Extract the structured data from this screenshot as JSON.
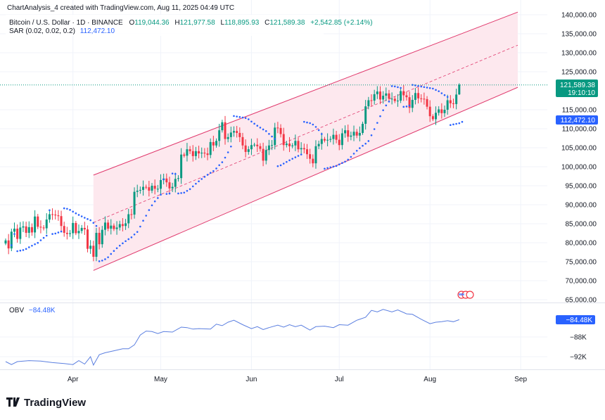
{
  "header": {
    "credit": "ChartAnalysis_4 created with TradingView.com, Aug 11, 2025 04:49 UTC",
    "symbol": "Bitcoin / U.S. Dollar · 1D · BINANCE",
    "o_label": "O",
    "o": "119,044.36",
    "h_label": "H",
    "h": "121,977.58",
    "l_label": "L",
    "l": "118,895.93",
    "c_label": "C",
    "c": "121,589.38",
    "change": "+2,542.85 (+2.14%)",
    "sar_label": "SAR (0.02, 0.02, 0.2)",
    "sar_value": "112,472.10"
  },
  "price_labels": {
    "last": "121,589.38",
    "countdown": "19:10:10",
    "sar": "112,472.10",
    "obv": "−84.48K"
  },
  "obv_legend": {
    "label": "OBV",
    "value": "−84.48K"
  },
  "logo": "TradingView",
  "colors": {
    "up": "#089981",
    "down": "#f23645",
    "sar": "#2962ff",
    "channel": "#e0386c",
    "channel_fill": "#fde8ee",
    "obv": "#5b7fe0"
  },
  "chart_data": [
    {
      "type": "candlestick",
      "title": "Bitcoin / U.S. Dollar · 1D · BINANCE",
      "start_date": "2025-03-09",
      "unit": "thousand USD",
      "close": [
        80.6,
        78.5,
        82.9,
        83.7,
        81.0,
        84.0,
        84.3,
        82.6,
        84.1,
        82.7,
        86.9,
        84.2,
        84.0,
        83.8,
        86.1,
        87.5,
        87.4,
        87.2,
        87.0,
        84.4,
        82.6,
        82.3,
        82.5,
        85.2,
        82.5,
        83.1,
        83.9,
        83.5,
        78.4,
        79.2,
        76.3,
        82.6,
        79.6,
        83.4,
        85.3,
        83.7,
        84.5,
        83.6,
        84.0,
        84.9,
        84.4,
        85.1,
        87.5,
        87.4,
        93.4,
        93.7,
        93.9,
        94.7,
        94.6,
        93.7,
        95.0,
        94.2,
        94.2,
        96.5,
        96.9,
        95.9,
        94.3,
        94.7,
        96.8,
        97.0,
        103.2,
        102.9,
        104.6,
        104.1,
        102.8,
        104.1,
        103.5,
        103.7,
        103.5,
        103.1,
        106.5,
        105.6,
        106.8,
        109.6,
        111.7,
        107.3,
        107.8,
        109.0,
        109.4,
        108.9,
        107.8,
        105.6,
        103.9,
        104.6,
        105.7,
        105.8,
        105.4,
        104.7,
        101.6,
        104.4,
        105.6,
        105.7,
        110.3,
        110.2,
        108.6,
        105.7,
        106.1,
        105.4,
        105.6,
        106.8,
        104.6,
        104.9,
        104.6,
        103.3,
        102.1,
        100.9,
        105.4,
        106.0,
        107.3,
        106.9,
        107.1,
        107.3,
        108.4,
        107.1,
        105.7,
        108.8,
        109.6,
        107.9,
        108.2,
        109.2,
        108.2,
        108.9,
        111.3,
        115.9,
        117.5,
        117.4,
        119.1,
        119.8,
        117.7,
        118.7,
        119.3,
        117.9,
        117.9,
        117.3,
        117.4,
        119.9,
        118.8,
        118.3,
        115.5,
        117.6,
        119.4,
        118.0,
        117.9,
        117.8,
        115.8,
        113.3,
        112.5,
        114.2,
        115.1,
        114.1,
        115.0,
        117.5,
        116.7,
        116.5,
        119.0,
        121.589
      ],
      "last_ohlc": {
        "open": 119044.36,
        "high": 121977.58,
        "low": 118895.93,
        "close": 121589.38
      },
      "sar_params": [
        0.02,
        0.02,
        0.2
      ],
      "sar_last": 112472.1,
      "channel": {
        "upper": [
          [
            "2025-04-08",
            97.8
          ],
          [
            "2025-08-31",
            140.7
          ]
        ],
        "lower": [
          [
            "2025-04-08",
            72.7
          ],
          [
            "2025-08-31",
            120.9
          ]
        ],
        "middle": [
          [
            "2025-04-08",
            85.3
          ],
          [
            "2025-08-31",
            132.0
          ]
        ]
      },
      "ylim": [
        65000,
        140000
      ],
      "y_ticks": [
        "140,000.00",
        "135,000.00",
        "130,000.00",
        "125,000.00",
        "115,000.00",
        "110,000.00",
        "105,000.00",
        "100,000.00",
        "95,000.00",
        "90,000.00",
        "85,000.00",
        "80,000.00",
        "75,000.00",
        "70,000.00",
        "65,000.00"
      ],
      "y_tick_values": [
        140000,
        135000,
        130000,
        125000,
        115000,
        110000,
        105000,
        100000,
        95000,
        90000,
        85000,
        80000,
        75000,
        70000,
        65000
      ],
      "x_ticks": [
        [
          "Apr",
          "2025-04-01"
        ],
        [
          "May",
          "2025-05-01"
        ],
        [
          "Jun",
          "2025-06-01"
        ],
        [
          "Jul",
          "2025-07-01"
        ],
        [
          "Aug",
          "2025-08-01"
        ],
        [
          "Sep",
          "2025-09-01"
        ]
      ],
      "grid": true
    },
    {
      "type": "line",
      "title": "OBV",
      "unit": "K",
      "points": [
        [
          0,
          -93.0
        ],
        [
          2,
          -93.6
        ],
        [
          4,
          -93.0
        ],
        [
          8,
          -92.8
        ],
        [
          12,
          -92.9
        ],
        [
          16,
          -93.2
        ],
        [
          20,
          -93.4
        ],
        [
          23,
          -93.6
        ],
        [
          25,
          -92.8
        ],
        [
          27,
          -93.5
        ],
        [
          29,
          -92.0
        ],
        [
          30,
          -93.7
        ],
        [
          32,
          -91.6
        ],
        [
          34,
          -91.2
        ],
        [
          37,
          -90.8
        ],
        [
          40,
          -90.4
        ],
        [
          42,
          -90.4
        ],
        [
          44,
          -89.6
        ],
        [
          46,
          -87.6
        ],
        [
          48,
          -86.8
        ],
        [
          50,
          -86.9
        ],
        [
          52,
          -87.3
        ],
        [
          54,
          -86.9
        ],
        [
          57,
          -87.0
        ],
        [
          60,
          -86.0
        ],
        [
          62,
          -86.1
        ],
        [
          64,
          -86.4
        ],
        [
          66,
          -86.3
        ],
        [
          70,
          -86.4
        ],
        [
          72,
          -85.4
        ],
        [
          74,
          -85.7
        ],
        [
          76,
          -85.0
        ],
        [
          78,
          -84.6
        ],
        [
          81,
          -85.5
        ],
        [
          84,
          -86.3
        ],
        [
          86,
          -85.9
        ],
        [
          88,
          -86.5
        ],
        [
          90,
          -86.1
        ],
        [
          93,
          -85.6
        ],
        [
          95,
          -86.0
        ],
        [
          97,
          -85.5
        ],
        [
          99,
          -85.9
        ],
        [
          101,
          -85.6
        ],
        [
          104,
          -86.6
        ],
        [
          106,
          -85.9
        ],
        [
          109,
          -85.8
        ],
        [
          112,
          -86.1
        ],
        [
          114,
          -85.5
        ],
        [
          117,
          -85.6
        ],
        [
          120,
          -84.6
        ],
        [
          123,
          -84.0
        ],
        [
          125,
          -82.6
        ],
        [
          127,
          -82.9
        ],
        [
          129,
          -82.4
        ],
        [
          132,
          -82.9
        ],
        [
          134,
          -82.5
        ],
        [
          137,
          -83.3
        ],
        [
          139,
          -83.4
        ],
        [
          142,
          -84.4
        ],
        [
          145,
          -85.3
        ],
        [
          147,
          -85.0
        ],
        [
          149,
          -84.9
        ],
        [
          151,
          -84.7
        ],
        [
          153,
          -84.9
        ],
        [
          155,
          -84.48
        ]
      ],
      "x_note_days_from": "2025-03-09",
      "y_ticks": [
        "−88K",
        "−92K"
      ],
      "y_tick_values": [
        -88,
        -92
      ]
    }
  ]
}
